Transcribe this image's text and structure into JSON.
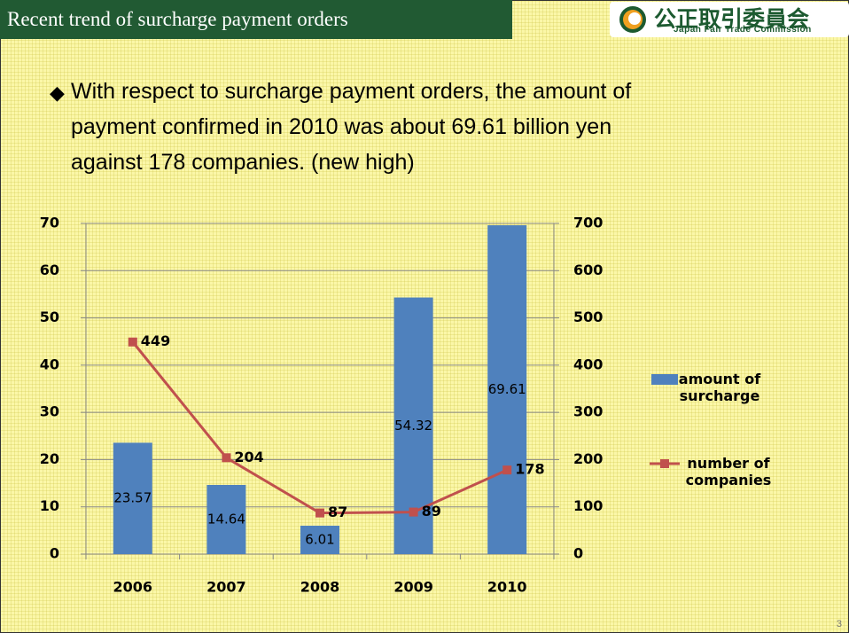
{
  "header": {
    "title": "Recent trend of surcharge payment orders",
    "logo_text": "公正取引委員会",
    "logo_subtext": "Japan Fair Trade Commission"
  },
  "bullet": {
    "lines": [
      "With respect to surcharge payment orders, the amount of",
      "payment confirmed in 2010 was about  69.61 billion yen",
      "against 178 companies. (new high)"
    ]
  },
  "chart_data": {
    "type": "bar",
    "categories": [
      "2006",
      "2007",
      "2008",
      "2009",
      "2010"
    ],
    "series": [
      {
        "name": "amount of surcharge",
        "type": "bar",
        "color": "#4f81bd",
        "values": [
          23.57,
          14.64,
          6.01,
          54.32,
          69.61
        ]
      },
      {
        "name": "number of companies",
        "type": "line",
        "axis": "y2",
        "color": "#c0504d",
        "values": [
          449,
          204,
          87,
          89,
          178
        ]
      }
    ],
    "ylim": [
      0,
      70
    ],
    "yticks": [
      0,
      10,
      20,
      30,
      40,
      50,
      60,
      70
    ],
    "y2lim": [
      0,
      700
    ],
    "y2ticks": [
      0,
      100,
      200,
      300,
      400,
      500,
      600,
      700
    ],
    "grid": true,
    "legend": "right"
  },
  "page_number": "3"
}
